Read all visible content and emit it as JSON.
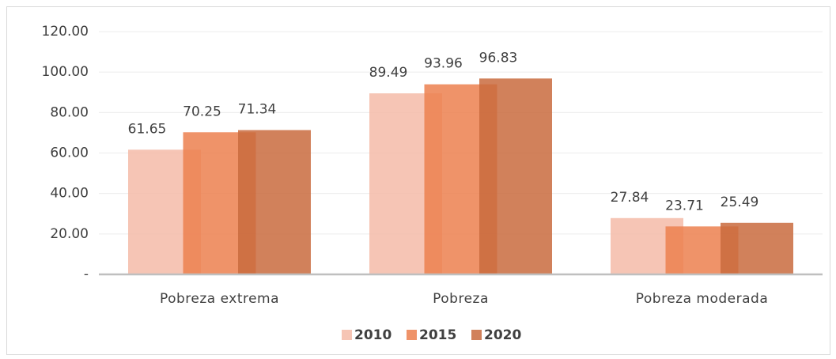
{
  "chart_data": {
    "type": "bar",
    "categories": [
      "Pobreza extrema",
      "Pobreza",
      "Pobreza moderada"
    ],
    "series": [
      {
        "name": "2010",
        "color": "#f5bba8",
        "values": [
          61.65,
          89.49,
          27.84
        ]
      },
      {
        "name": "2015",
        "color": "#ec804f",
        "values": [
          70.25,
          93.96,
          23.71
        ]
      },
      {
        "name": "2020",
        "color": "#c96b3e",
        "values": [
          71.34,
          96.83,
          25.49
        ]
      }
    ],
    "ylim": [
      0,
      120
    ],
    "yticks": [
      {
        "value": 0,
        "label": "-"
      },
      {
        "value": 20,
        "label": "20.00"
      },
      {
        "value": 40,
        "label": "40.00"
      },
      {
        "value": 60,
        "label": "60.00"
      },
      {
        "value": 80,
        "label": "80.00"
      },
      {
        "value": 100,
        "label": "100.00"
      },
      {
        "value": 120,
        "label": "120.00"
      }
    ],
    "grid": true,
    "legend": "bottom"
  }
}
